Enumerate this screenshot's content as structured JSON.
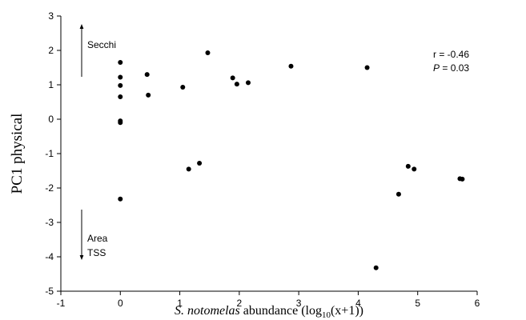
{
  "chart_data": {
    "type": "scatter",
    "xlabel": {
      "species": "S. notomelas",
      "rest": " abundance (log",
      "sub": "10",
      "tail": "(x+1))"
    },
    "ylabel": "PC1 physical",
    "xlim": [
      -1,
      6
    ],
    "ylim": [
      -5,
      3
    ],
    "xticks": [
      "-1",
      "0",
      "1",
      "2",
      "3",
      "4",
      "5",
      "6"
    ],
    "yticks": [
      "-5",
      "-4",
      "-3",
      "-2",
      "-1",
      "0",
      "1",
      "2",
      "3"
    ],
    "grid": false,
    "points": [
      {
        "x": 0.0,
        "y": 1.65
      },
      {
        "x": 0.0,
        "y": 1.22
      },
      {
        "x": 0.0,
        "y": 0.98
      },
      {
        "x": 0.0,
        "y": 0.65
      },
      {
        "x": 0.0,
        "y": -0.05
      },
      {
        "x": 0.0,
        "y": -0.1
      },
      {
        "x": 0.0,
        "y": -2.32
      },
      {
        "x": 0.45,
        "y": 1.3
      },
      {
        "x": 0.47,
        "y": 0.7
      },
      {
        "x": 1.05,
        "y": 0.93
      },
      {
        "x": 1.15,
        "y": -1.45
      },
      {
        "x": 1.33,
        "y": -1.28
      },
      {
        "x": 1.47,
        "y": 1.93
      },
      {
        "x": 1.89,
        "y": 1.2
      },
      {
        "x": 1.96,
        "y": 1.02
      },
      {
        "x": 2.15,
        "y": 1.06
      },
      {
        "x": 2.87,
        "y": 1.54
      },
      {
        "x": 4.15,
        "y": 1.5
      },
      {
        "x": 4.3,
        "y": -4.32
      },
      {
        "x": 4.68,
        "y": -2.18
      },
      {
        "x": 4.84,
        "y": -1.37
      },
      {
        "x": 4.94,
        "y": -1.45
      },
      {
        "x": 5.71,
        "y": -1.73
      },
      {
        "x": 5.75,
        "y": -1.74
      }
    ],
    "annotations": {
      "top_label": "Secchi",
      "bottom_label_1": "Area",
      "bottom_label_2": "TSS",
      "stats_r": "r = -0.46",
      "stats_p_italic": "P",
      "stats_p_rest": " = 0.03"
    }
  }
}
